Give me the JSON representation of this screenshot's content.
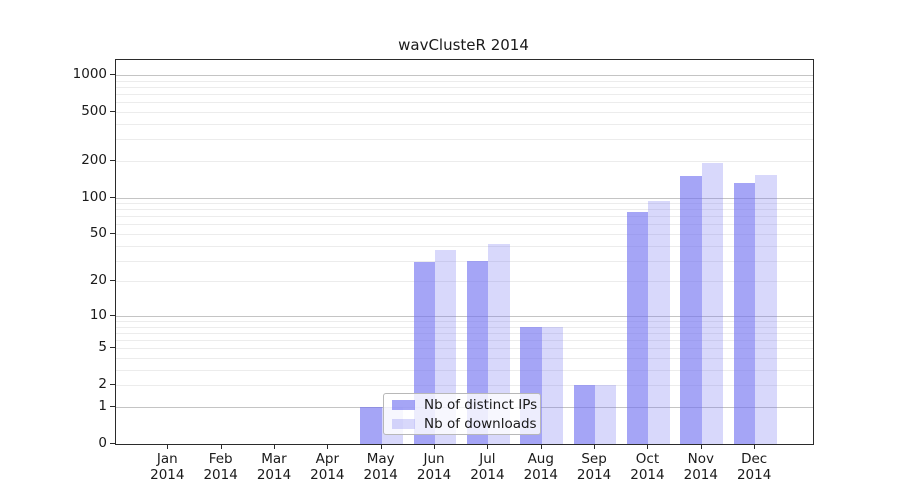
{
  "chart_data": {
    "type": "bar",
    "title": "wavClusteR 2014",
    "year_label": "2014",
    "categories": [
      "Jan",
      "Feb",
      "Mar",
      "Apr",
      "May",
      "Jun",
      "Jul",
      "Aug",
      "Sep",
      "Oct",
      "Nov",
      "Dec"
    ],
    "series": [
      {
        "name": "Nb of distinct IPs",
        "values": [
          0,
          0,
          0,
          0,
          1,
          29,
          30,
          8,
          2,
          76,
          150,
          131
        ]
      },
      {
        "name": "Nb of downloads",
        "values": [
          0,
          0,
          0,
          0,
          1,
          37,
          41,
          8,
          2,
          94,
          191,
          154
        ]
      }
    ],
    "y_ticks": [
      0,
      1,
      2,
      5,
      10,
      20,
      50,
      100,
      200,
      500,
      1000
    ],
    "y_scale": "log1p",
    "ylim": [
      0,
      1326
    ],
    "grid": "on",
    "gridlines": {
      "major": [
        1,
        10,
        100,
        1000
      ],
      "minor": [
        2,
        3,
        4,
        5,
        6,
        7,
        8,
        9,
        20,
        30,
        40,
        50,
        60,
        70,
        80,
        90,
        200,
        300,
        400,
        500,
        600,
        700,
        800,
        900
      ]
    },
    "legend_position": "lower-center-inside",
    "colors": {
      "bar_base": "#6e6ef0",
      "ips_alpha": 0.62,
      "downloads_alpha": 0.27,
      "ips_fill": "rgba(110,110,240,0.62)",
      "downloads_fill": "rgba(110,110,240,0.27)",
      "grid_major": "#c4c4c4",
      "grid_minor": "#ececec",
      "spine": "#2b2b2b"
    }
  }
}
